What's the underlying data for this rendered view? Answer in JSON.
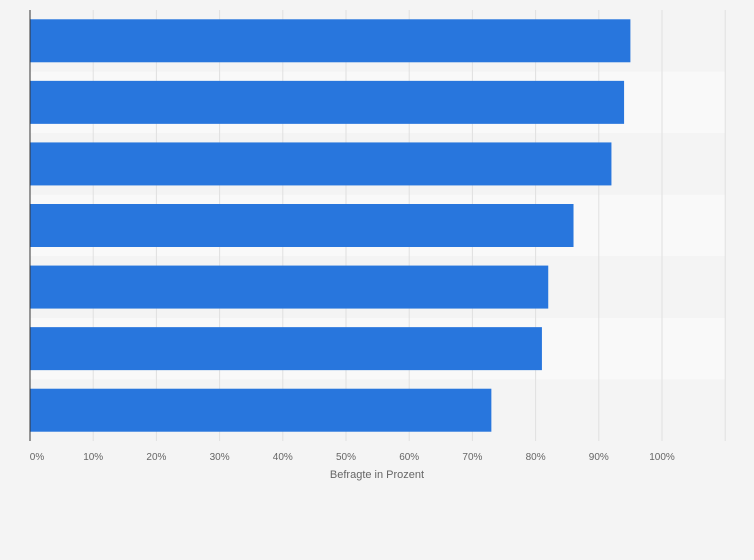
{
  "chart_data": {
    "type": "bar",
    "orientation": "horizontal",
    "categories": [
      "",
      "",
      "",
      "",
      "",
      "",
      ""
    ],
    "values": [
      95,
      94,
      92,
      86,
      82,
      81,
      73
    ],
    "xlabel": "Befragte in Prozent",
    "ylabel": "",
    "xlim": [
      0,
      110
    ],
    "xticks": [
      0,
      10,
      20,
      30,
      40,
      50,
      60,
      70,
      80,
      90,
      100
    ],
    "tick_labels": [
      "0%",
      "10%",
      "20%",
      "30%",
      "40%",
      "50%",
      "60%",
      "70%",
      "80%",
      "90%",
      "100%"
    ],
    "grid": true,
    "colors": {
      "bar": "#2876dd",
      "band_light": "#f4f4f4",
      "band_lighter": "#f9f9f9",
      "grid": "#e0e0e0",
      "axis": "#333333"
    }
  }
}
